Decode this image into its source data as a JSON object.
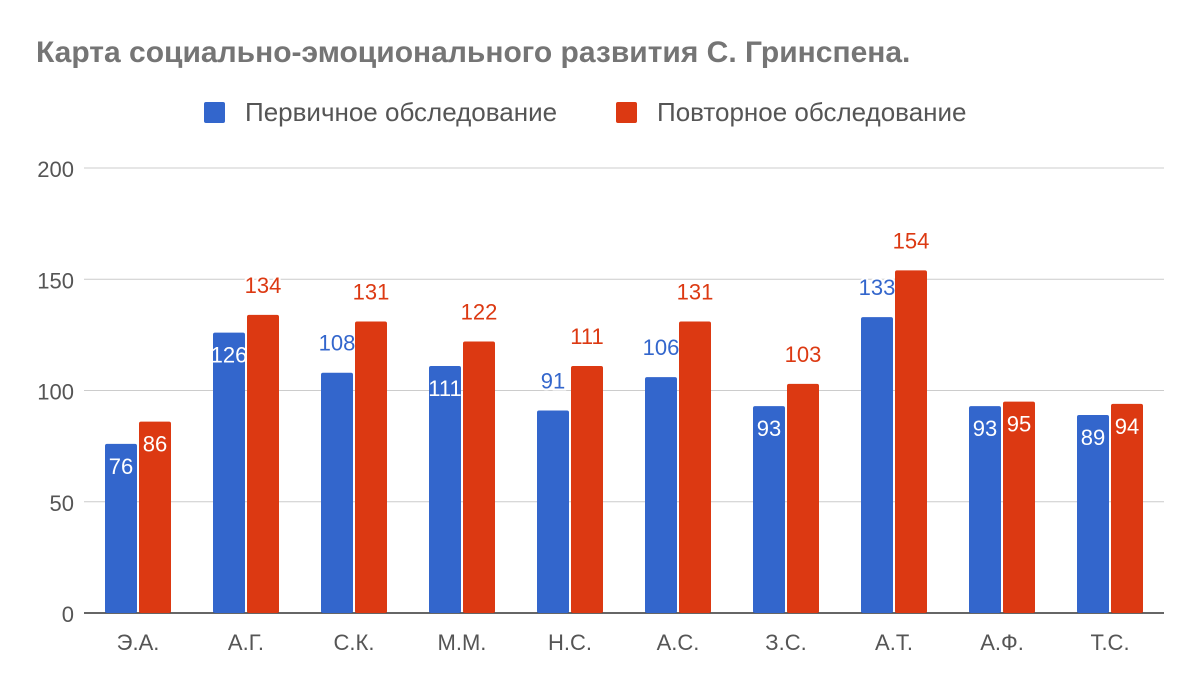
{
  "chart_data": {
    "type": "bar",
    "title": "Карта социально-эмоционального развития  С. Гринспена.",
    "categories": [
      "Э.А.",
      "А.Г.",
      "С.К.",
      "М.М.",
      "Н.С.",
      "А.С.",
      "З.С.",
      "А.Т.",
      "А.Ф.",
      "Т.С."
    ],
    "series": [
      {
        "name": "Первичное обследование",
        "color": "#3366cc",
        "values": [
          76,
          126,
          108,
          111,
          91,
          106,
          93,
          133,
          93,
          89
        ]
      },
      {
        "name": "Повторное обследование",
        "color": "#dc3912",
        "values": [
          86,
          134,
          131,
          122,
          111,
          131,
          103,
          154,
          95,
          94
        ]
      }
    ],
    "ylim": [
      0,
      200
    ],
    "yticks": [
      "0",
      "50",
      "100",
      "150",
      "200"
    ],
    "grid": true,
    "legend": "top",
    "xlabel": "",
    "ylabel": ""
  }
}
